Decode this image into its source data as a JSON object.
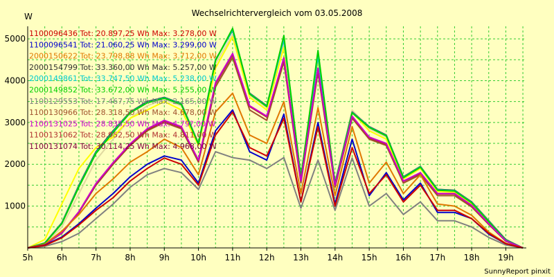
{
  "chart_data": {
    "type": "line",
    "title": "Wechselrichtervergleich vom 03.05.2008",
    "ylabel": "W",
    "xlabel": "",
    "footer": "SunnyReport pinxit",
    "ylim": [
      0,
      5300
    ],
    "xlim": [
      5,
      19.6
    ],
    "y_ticks": [
      1000,
      2000,
      3000,
      4000,
      5000
    ],
    "x_ticks": [
      5,
      6,
      7,
      8,
      9,
      10,
      11,
      12,
      13,
      14,
      15,
      16,
      17,
      18,
      19
    ],
    "x_tick_labels": [
      "5h",
      "6h",
      "7h",
      "8h",
      "9h",
      "10h",
      "11h",
      "12h",
      "13h",
      "14h",
      "15h",
      "16h",
      "17h",
      "18h",
      "19h"
    ],
    "grid": true,
    "legend_position": "top-left",
    "x": [
      5.0,
      5.5,
      6.0,
      6.5,
      7.0,
      7.5,
      8.0,
      8.5,
      9.0,
      9.5,
      10.0,
      10.5,
      11.0,
      11.5,
      12.0,
      12.5,
      13.0,
      13.5,
      14.0,
      14.5,
      15.0,
      15.5,
      16.0,
      16.5,
      17.0,
      17.5,
      18.0,
      18.5,
      19.0,
      19.5
    ],
    "series": [
      {
        "name": "1100096436",
        "label": "1100096436 Tot: 20.897,25 Wh Max: 3.278,00 W",
        "color": "#cc0000",
        "values": [
          0,
          60,
          240,
          550,
          900,
          1200,
          1600,
          1900,
          2150,
          2000,
          1500,
          2700,
          3250,
          2400,
          2200,
          3100,
          1100,
          2900,
          1000,
          2400,
          1300,
          1750,
          1100,
          1500,
          900,
          900,
          700,
          350,
          100,
          0
        ]
      },
      {
        "name": "1100096541",
        "label": "1100096541 Tot: 21.060,25 Wh Max: 3.299,00 W",
        "color": "#0000cc",
        "values": [
          0,
          70,
          260,
          580,
          950,
          1300,
          1700,
          2000,
          2200,
          2100,
          1550,
          2800,
          3300,
          2300,
          2100,
          3200,
          1100,
          3000,
          1050,
          2600,
          1250,
          1800,
          1150,
          1550,
          850,
          850,
          700,
          330,
          100,
          0
        ]
      },
      {
        "name": "2000150622",
        "label": "2000150622 Tot: 23.798,88 Wh Max: 3.712,00 W",
        "color": "#e07800",
        "values": [
          0,
          90,
          400,
          800,
          1300,
          1650,
          2050,
          2300,
          2600,
          2400,
          1750,
          3250,
          3700,
          2700,
          2500,
          3500,
          1300,
          3350,
          1250,
          2900,
          1550,
          2050,
          1300,
          1750,
          1050,
          1000,
          780,
          380,
          110,
          0
        ]
      },
      {
        "name": "2000154799",
        "label": "2000154799 Tot: 33.360,00 Wh Max: 5.257,00 W",
        "color": "#303030",
        "values": [
          0,
          120,
          600,
          1500,
          2300,
          2800,
          3250,
          3500,
          3600,
          3450,
          2500,
          4500,
          5200,
          3700,
          3400,
          5000,
          1700,
          4600,
          1550,
          3250,
          2900,
          2700,
          1700,
          1950,
          1400,
          1380,
          1100,
          650,
          200,
          0
        ]
      },
      {
        "name": "2000149861",
        "label": "2000149861 Tot: 33.747,50 Wh Max: 5.238,00 W",
        "color": "#00cccc",
        "values": [
          0,
          115,
          590,
          1480,
          2280,
          2780,
          3240,
          3480,
          3590,
          3440,
          2490,
          4490,
          5210,
          3690,
          3390,
          4990,
          1690,
          4590,
          1540,
          3240,
          2890,
          2690,
          1690,
          1940,
          1390,
          1370,
          1090,
          640,
          190,
          0
        ]
      },
      {
        "name": "2000149852",
        "label": "2000149852 Tot: 33.672,00 Wh Max: 5.255,00 W",
        "color": "#00d000",
        "values": [
          0,
          110,
          580,
          1460,
          2260,
          2760,
          3230,
          3470,
          3580,
          3430,
          2480,
          4480,
          5250,
          3680,
          3380,
          5080,
          1680,
          4720,
          1530,
          3230,
          2880,
          2680,
          1680,
          1930,
          1380,
          1360,
          1080,
          630,
          180,
          0
        ]
      },
      {
        "name": "1100129553",
        "label": "1100129553 Tot: 17.467,75 Wh Max: 2.165,00 W",
        "color": "#808080",
        "values": [
          0,
          40,
          150,
          350,
          700,
          1050,
          1450,
          1750,
          1900,
          1800,
          1400,
          2300,
          2160,
          2100,
          1900,
          2160,
          950,
          2100,
          900,
          2150,
          1000,
          1300,
          800,
          1100,
          650,
          650,
          500,
          250,
          70,
          0
        ]
      },
      {
        "name": "1100130966",
        "label": "1100130966 Tot: 28.318,50 Wh Max: 4.678,00 W",
        "color": "#a0522d",
        "values": [
          0,
          80,
          350,
          850,
          1500,
          2000,
          2450,
          2800,
          3000,
          2850,
          2050,
          3850,
          4550,
          3300,
          3050,
          4450,
          1550,
          4200,
          1450,
          3100,
          2600,
          2450,
          1550,
          1750,
          1250,
          1250,
          980,
          560,
          160,
          0
        ]
      },
      {
        "name": "1100131025",
        "label": "1100131025 Tot: 28.835,50 Wh Max: 4.79?,00 W",
        "color": "#cc00cc",
        "values": [
          0,
          85,
          360,
          870,
          1540,
          2040,
          2490,
          2850,
          3050,
          2900,
          2100,
          3950,
          4650,
          3400,
          3150,
          4550,
          1600,
          4300,
          1500,
          3150,
          2650,
          2500,
          1600,
          1800,
          1300,
          1300,
          1020,
          580,
          170,
          0
        ]
      },
      {
        "name": "1100131062",
        "label": "1100131062 Tot: 28.952,50 Wh Max: 4.811,00 W",
        "color": "#b03030",
        "values": [
          0,
          82,
          355,
          860,
          1520,
          2020,
          2470,
          2830,
          3030,
          2880,
          2080,
          3920,
          4620,
          3380,
          3130,
          4520,
          1590,
          4280,
          1490,
          3130,
          2630,
          2480,
          1590,
          1780,
          1290,
          1290,
          1010,
          570,
          165,
          0
        ]
      },
      {
        "name": "1100131074",
        "label": "1100131074 Tot: 30.114,25 Wh Max: 4.968,00 W",
        "color": "#800040",
        "values": [
          0,
          84,
          358,
          865,
          1530,
          2030,
          2480,
          2840,
          3040,
          2890,
          2090,
          3930,
          4630,
          3390,
          3140,
          4530,
          1595,
          4290,
          1495,
          3140,
          2640,
          2490,
          1595,
          1790,
          1295,
          1295,
          1015,
          575,
          168,
          0
        ]
      },
      {
        "name": "yellow",
        "label": "",
        "color": "#ffff00",
        "values": [
          0,
          200,
          1050,
          1900,
          2400,
          2650,
          3100,
          3300,
          3500,
          3300,
          2450,
          4300,
          5050,
          3600,
          3300,
          4800,
          1600,
          4500,
          1450,
          3250,
          2800,
          2600,
          1650,
          1900,
          1350,
          1330,
          1050,
          600,
          180,
          0
        ]
      },
      {
        "name": "beige",
        "label": "",
        "color": "#e0d8a0",
        "values": [
          0,
          100,
          500,
          1300,
          2100,
          2600,
          3100,
          3400,
          3550,
          3400,
          2450,
          4400,
          5100,
          3650,
          3350,
          4900,
          1650,
          4550,
          1500,
          3300,
          2850,
          2650,
          1700,
          1950,
          1400,
          1380,
          1080,
          640,
          190,
          0
        ]
      }
    ]
  }
}
